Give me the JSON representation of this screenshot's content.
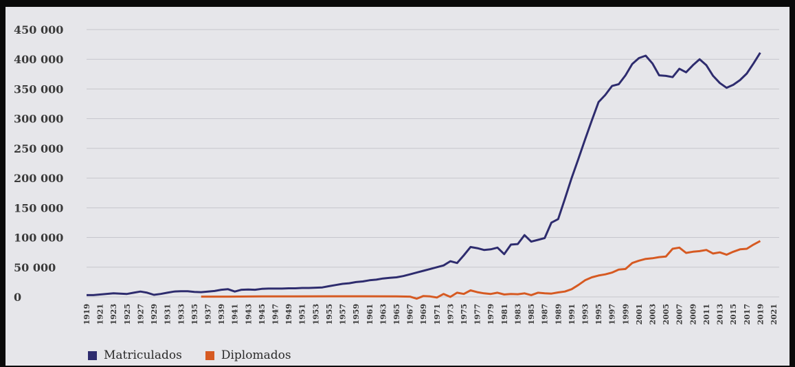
{
  "chart_data": {
    "type": "line",
    "ylim": [
      0,
      450000
    ],
    "y_ticks": [
      "450 000",
      "400 000",
      "350 000",
      "300 000",
      "250 000",
      "200 000",
      "150 000",
      "100 000",
      "50 000",
      "0"
    ],
    "y_tick_values": [
      450000,
      400000,
      350000,
      300000,
      250000,
      200000,
      150000,
      100000,
      50000,
      0
    ],
    "x_tick_labels": [
      "1919",
      "1921",
      "1923",
      "1925",
      "1927",
      "1929",
      "1931",
      "1933",
      "1935",
      "1937",
      "1939",
      "1941",
      "1943",
      "1945",
      "1947",
      "1949",
      "1951",
      "1953",
      "1955",
      "1957",
      "1959",
      "1961",
      "1963",
      "1965",
      "1967",
      "1969",
      "1971",
      "1973",
      "1975",
      "1977",
      "1979",
      "1981",
      "1983",
      "1985",
      "1987",
      "1989",
      "1991",
      "1993",
      "1995",
      "1997",
      "1999",
      "2001",
      "2003",
      "2005",
      "2007",
      "2009",
      "2011",
      "2013",
      "2015",
      "2017",
      "2019",
      "2021"
    ],
    "grid": true,
    "legend_position": "bottom-left",
    "series": [
      {
        "name": "Matriculados",
        "color": "#2e2c6e",
        "points": [
          [
            1919,
            3000
          ],
          [
            1920,
            3000
          ],
          [
            1921,
            4000
          ],
          [
            1923,
            6000
          ],
          [
            1924,
            5500
          ],
          [
            1925,
            5000
          ],
          [
            1926,
            7000
          ],
          [
            1927,
            9000
          ],
          [
            1928,
            7000
          ],
          [
            1929,
            3500
          ],
          [
            1930,
            5000
          ],
          [
            1931,
            7000
          ],
          [
            1932,
            9000
          ],
          [
            1933,
            9500
          ],
          [
            1934,
            9500
          ],
          [
            1935,
            8500
          ],
          [
            1936,
            8000
          ],
          [
            1937,
            9000
          ],
          [
            1938,
            10000
          ],
          [
            1939,
            12000
          ],
          [
            1940,
            13000
          ],
          [
            1941,
            9000
          ],
          [
            1942,
            12000
          ],
          [
            1943,
            12500
          ],
          [
            1944,
            12000
          ],
          [
            1945,
            13500
          ],
          [
            1946,
            14000
          ],
          [
            1947,
            14000
          ],
          [
            1948,
            14000
          ],
          [
            1949,
            14500
          ],
          [
            1950,
            14500
          ],
          [
            1951,
            15000
          ],
          [
            1952,
            15000
          ],
          [
            1953,
            15500
          ],
          [
            1954,
            16000
          ],
          [
            1955,
            18000
          ],
          [
            1956,
            20000
          ],
          [
            1957,
            22000
          ],
          [
            1958,
            23000
          ],
          [
            1959,
            25000
          ],
          [
            1960,
            26000
          ],
          [
            1961,
            28000
          ],
          [
            1962,
            29000
          ],
          [
            1963,
            31000
          ],
          [
            1964,
            32000
          ],
          [
            1965,
            33000
          ],
          [
            1966,
            35000
          ],
          [
            1967,
            38000
          ],
          [
            1968,
            41000
          ],
          [
            1969,
            44000
          ],
          [
            1970,
            47000
          ],
          [
            1971,
            50000
          ],
          [
            1972,
            53000
          ],
          [
            1973,
            60000
          ],
          [
            1974,
            57000
          ],
          [
            1975,
            70000
          ],
          [
            1976,
            84000
          ],
          [
            1977,
            82000
          ],
          [
            1978,
            79000
          ],
          [
            1979,
            80000
          ],
          [
            1980,
            83000
          ],
          [
            1981,
            72000
          ],
          [
            1982,
            88000
          ],
          [
            1983,
            89000
          ],
          [
            1984,
            104000
          ],
          [
            1985,
            93000
          ],
          [
            1986,
            96000
          ],
          [
            1987,
            99000
          ],
          [
            1988,
            125000
          ],
          [
            1989,
            131000
          ],
          [
            1990,
            165000
          ],
          [
            1991,
            200000
          ],
          [
            1992,
            232000
          ],
          [
            1993,
            265000
          ],
          [
            1994,
            297000
          ],
          [
            1995,
            328000
          ],
          [
            1996,
            340000
          ],
          [
            1997,
            355000
          ],
          [
            1998,
            358000
          ],
          [
            1999,
            373000
          ],
          [
            2000,
            392000
          ],
          [
            2001,
            402000
          ],
          [
            2002,
            406000
          ],
          [
            2003,
            393000
          ],
          [
            2004,
            373000
          ],
          [
            2005,
            372000
          ],
          [
            2006,
            370000
          ],
          [
            2007,
            384000
          ],
          [
            2008,
            378000
          ],
          [
            2009,
            390000
          ],
          [
            2010,
            400000
          ],
          [
            2011,
            390000
          ],
          [
            2012,
            372000
          ],
          [
            2013,
            360000
          ],
          [
            2014,
            352000
          ],
          [
            2015,
            357000
          ],
          [
            2016,
            365000
          ],
          [
            2017,
            376000
          ],
          [
            2018,
            393000
          ],
          [
            2019,
            411000
          ]
        ]
      },
      {
        "name": "Diplomados",
        "color": "#d65a22",
        "points": [
          [
            1936,
            500
          ],
          [
            1940,
            500
          ],
          [
            1945,
            800
          ],
          [
            1950,
            800
          ],
          [
            1955,
            1000
          ],
          [
            1960,
            1000
          ],
          [
            1965,
            800
          ],
          [
            1967,
            500
          ],
          [
            1968,
            -3000
          ],
          [
            1969,
            1500
          ],
          [
            1970,
            800
          ],
          [
            1971,
            -1000
          ],
          [
            1972,
            5000
          ],
          [
            1973,
            0
          ],
          [
            1974,
            7000
          ],
          [
            1975,
            5000
          ],
          [
            1976,
            11000
          ],
          [
            1977,
            8000
          ],
          [
            1978,
            6000
          ],
          [
            1979,
            5000
          ],
          [
            1980,
            7000
          ],
          [
            1981,
            4000
          ],
          [
            1982,
            5000
          ],
          [
            1983,
            4500
          ],
          [
            1984,
            6000
          ],
          [
            1985,
            3000
          ],
          [
            1986,
            7000
          ],
          [
            1987,
            6000
          ],
          [
            1988,
            5500
          ],
          [
            1989,
            7500
          ],
          [
            1990,
            9000
          ],
          [
            1991,
            13000
          ],
          [
            1992,
            20000
          ],
          [
            1993,
            28000
          ],
          [
            1994,
            33000
          ],
          [
            1995,
            36000
          ],
          [
            1996,
            38000
          ],
          [
            1997,
            41000
          ],
          [
            1998,
            46000
          ],
          [
            1999,
            47000
          ],
          [
            2000,
            57000
          ],
          [
            2001,
            61000
          ],
          [
            2002,
            64000
          ],
          [
            2003,
            65000
          ],
          [
            2004,
            67000
          ],
          [
            2005,
            68000
          ],
          [
            2006,
            81000
          ],
          [
            2007,
            83000
          ],
          [
            2008,
            74000
          ],
          [
            2009,
            76000
          ],
          [
            2010,
            77000
          ],
          [
            2011,
            79000
          ],
          [
            2012,
            73000
          ],
          [
            2013,
            75000
          ],
          [
            2014,
            71000
          ],
          [
            2015,
            76000
          ],
          [
            2016,
            80000
          ],
          [
            2017,
            81000
          ],
          [
            2018,
            88000
          ],
          [
            2019,
            94000
          ]
        ]
      }
    ]
  },
  "legend": [
    {
      "label": "Matriculados",
      "color": "#2e2c6e"
    },
    {
      "label": "Diplomados",
      "color": "#d65a22"
    }
  ]
}
